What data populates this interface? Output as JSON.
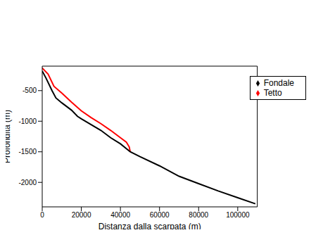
{
  "chart_data": {
    "type": "line",
    "x_label": "Distanza dalla scarpata (m)",
    "y_label": "Profondità (m)",
    "xlim": [
      0,
      110000
    ],
    "xticks": [
      0,
      20000,
      40000,
      60000,
      80000,
      100000
    ],
    "ylim": [
      -2400,
      -100
    ],
    "yticks": [
      -500,
      -1000,
      -1500,
      -2000
    ],
    "grid": false,
    "legend": "upper right",
    "marker": "diamond",
    "series": [
      {
        "name": "Tetto",
        "color": "#ff0000",
        "x": [
          0,
          3000,
          6000,
          10000,
          15000,
          20000,
          25000,
          30000,
          35000,
          40000,
          43000,
          44500,
          45000
        ],
        "values": [
          -130,
          -230,
          -430,
          -540,
          -690,
          -830,
          -940,
          -1040,
          -1150,
          -1270,
          -1340,
          -1420,
          -1500
        ]
      },
      {
        "name": "Fondale",
        "color": "#000000",
        "x": [
          0,
          2000,
          5000,
          7000,
          10000,
          15000,
          18000,
          20000,
          30000,
          35000,
          40000,
          45000,
          50000,
          60000,
          70000,
          80000,
          90000,
          100000,
          109000
        ],
        "values": [
          -180,
          -300,
          -500,
          -620,
          -700,
          -820,
          -920,
          -960,
          -1150,
          -1270,
          -1370,
          -1500,
          -1580,
          -1730,
          -1900,
          -2020,
          -2140,
          -2250,
          -2350
        ]
      }
    ]
  }
}
